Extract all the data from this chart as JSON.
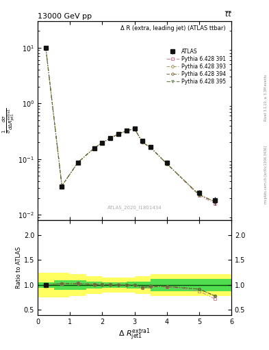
{
  "title_top": "13000 GeV pp",
  "title_right": "t̅t̅",
  "plot_title": "Δ R (extra, leading jet) (ATLAS ttbar)",
  "watermark": "ATLAS_2020_I1801434",
  "rivet_label": "Rivet 3.1.10, ≥ 3.3M events",
  "mcplots_label": "mcplots.cern.ch [arXiv:1306.3436]",
  "ylabel_ratio": "Ratio to ATLAS",
  "xlim": [
    0,
    6
  ],
  "ylim_main": [
    0.008,
    30
  ],
  "ylim_ratio": [
    0.4,
    2.3
  ],
  "x_data": [
    0.25,
    0.75,
    1.25,
    1.75,
    2.0,
    2.25,
    2.5,
    2.75,
    3.0,
    3.25,
    3.5,
    4.0,
    5.0,
    5.5
  ],
  "atlas_y": [
    10.0,
    0.032,
    0.085,
    0.155,
    0.195,
    0.235,
    0.28,
    0.32,
    0.35,
    0.21,
    0.165,
    0.085,
    0.025,
    0.018
  ],
  "atlas_yerr": [
    0.5,
    0.003,
    0.006,
    0.01,
    0.012,
    0.014,
    0.016,
    0.018,
    0.02,
    0.015,
    0.012,
    0.007,
    0.003,
    0.003
  ],
  "pythia_391_y": [
    10.05,
    0.033,
    0.088,
    0.158,
    0.198,
    0.238,
    0.282,
    0.322,
    0.352,
    0.198,
    0.16,
    0.082,
    0.022,
    0.016
  ],
  "pythia_393_y": [
    10.02,
    0.033,
    0.087,
    0.157,
    0.197,
    0.237,
    0.281,
    0.321,
    0.351,
    0.199,
    0.161,
    0.083,
    0.023,
    0.017
  ],
  "pythia_394_y": [
    10.03,
    0.033,
    0.087,
    0.156,
    0.196,
    0.236,
    0.28,
    0.32,
    0.35,
    0.198,
    0.16,
    0.082,
    0.023,
    0.017
  ],
  "pythia_395_y": [
    10.04,
    0.033,
    0.088,
    0.157,
    0.197,
    0.237,
    0.281,
    0.321,
    0.351,
    0.2,
    0.162,
    0.083,
    0.023,
    0.017
  ],
  "ratio_391": [
    1.005,
    1.03,
    1.035,
    1.02,
    1.015,
    1.013,
    1.007,
    1.006,
    1.006,
    0.943,
    0.97,
    0.965,
    0.88,
    0.72
  ],
  "ratio_393": [
    1.002,
    1.03,
    1.024,
    1.013,
    1.01,
    1.009,
    1.004,
    1.003,
    1.003,
    0.948,
    0.976,
    0.976,
    0.92,
    0.78
  ],
  "ratio_394": [
    1.003,
    1.03,
    1.024,
    1.006,
    1.005,
    1.004,
    1.0,
    1.0,
    1.0,
    0.943,
    0.97,
    0.965,
    0.92,
    0.78
  ],
  "ratio_395": [
    1.004,
    1.03,
    1.035,
    1.013,
    1.01,
    1.009,
    1.004,
    1.003,
    1.003,
    0.952,
    0.982,
    0.976,
    0.92,
    0.78
  ],
  "band_edges": [
    0.0,
    0.5,
    1.0,
    1.5,
    2.0,
    2.25,
    2.5,
    2.75,
    3.0,
    3.5,
    4.5,
    6.0
  ],
  "yellow_lo": [
    0.75,
    0.75,
    0.78,
    0.82,
    0.85,
    0.85,
    0.85,
    0.85,
    0.82,
    0.78,
    0.78
  ],
  "yellow_hi": [
    1.25,
    1.25,
    1.22,
    1.18,
    1.15,
    1.15,
    1.15,
    1.15,
    1.18,
    1.22,
    1.22
  ],
  "green_lo": [
    0.95,
    0.9,
    0.9,
    0.93,
    0.95,
    0.95,
    0.95,
    0.93,
    0.93,
    0.88,
    0.88
  ],
  "green_hi": [
    1.05,
    1.1,
    1.1,
    1.07,
    1.05,
    1.05,
    1.05,
    1.07,
    1.07,
    1.12,
    1.12
  ],
  "color_391": "#c08090",
  "color_393": "#a09050",
  "color_394": "#706030",
  "color_395": "#507030",
  "color_atlas": "#111111",
  "background_color": "#ffffff"
}
